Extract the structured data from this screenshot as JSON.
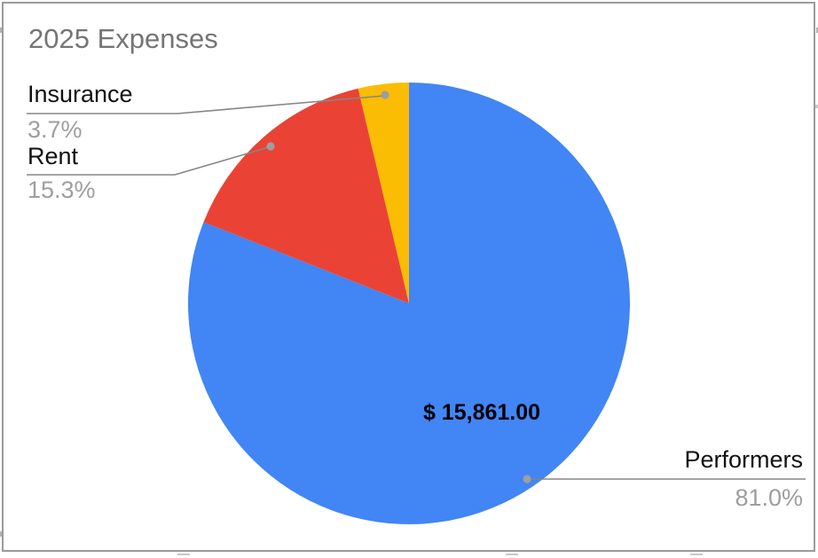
{
  "colors": {
    "accent_blue": "#4285F4",
    "accent_red": "#EA4335",
    "accent_yellow": "#FBBC04",
    "title_gray": "#757575",
    "label_black": "#111111",
    "percent_gray": "#9e9e9e",
    "line_gray": "#858585",
    "dot_gray": "#9e9e9e",
    "border_gray": "#9b9b9b"
  },
  "chart_data": {
    "type": "pie",
    "title": "2025 Expenses",
    "legend_position": "outside-labels-with-leader-lines",
    "start_angle_deg": 0,
    "direction": "clockwise",
    "slices": [
      {
        "label": "Performers",
        "percent": 81.0,
        "percent_label": "81.0%",
        "value_label": "$ 15,861.00",
        "color": "#4285F4"
      },
      {
        "label": "Rent",
        "percent": 15.3,
        "percent_label": "15.3%",
        "color": "#EA4335"
      },
      {
        "label": "Insurance",
        "percent": 3.7,
        "percent_label": "3.7%",
        "color": "#FBBC04"
      }
    ]
  }
}
